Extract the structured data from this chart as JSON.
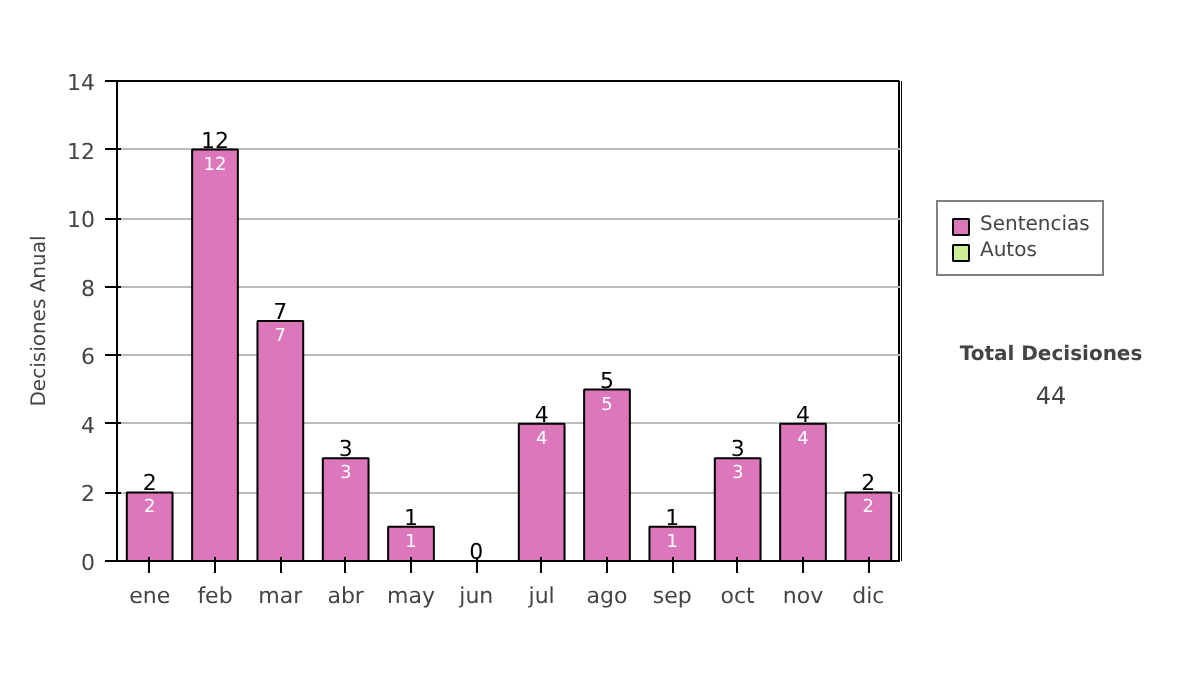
{
  "chart_data": {
    "type": "bar",
    "stacked": true,
    "ylabel": "Decisiones Anual",
    "categories": [
      "ene",
      "feb",
      "mar",
      "abr",
      "may",
      "jun",
      "jul",
      "ago",
      "sep",
      "oct",
      "nov",
      "dic"
    ],
    "series": [
      {
        "name": "Sentencias",
        "color": "#dd77bb",
        "values": [
          2,
          12,
          7,
          3,
          1,
          0,
          4,
          5,
          1,
          3,
          4,
          2
        ],
        "value_labels": [
          "2",
          "12",
          "7",
          "3",
          "1",
          null,
          "4",
          "5",
          "1",
          "3",
          "4",
          "2"
        ]
      },
      {
        "name": "Autos",
        "color": "#ccee99",
        "values": [
          0,
          0,
          0,
          0,
          0,
          0,
          0,
          0,
          0,
          0,
          0,
          0
        ]
      }
    ],
    "totals": [
      "2",
      "12",
      "7",
      "3",
      "1",
      "0",
      "4",
      "5",
      "1",
      "3",
      "4",
      "2"
    ],
    "ylim": [
      0,
      14
    ],
    "yticks": [
      0,
      2,
      4,
      6,
      8,
      10,
      12,
      14
    ],
    "grid": "y",
    "legend": "right",
    "annotations": [
      "Total Decisiones",
      "44"
    ]
  }
}
